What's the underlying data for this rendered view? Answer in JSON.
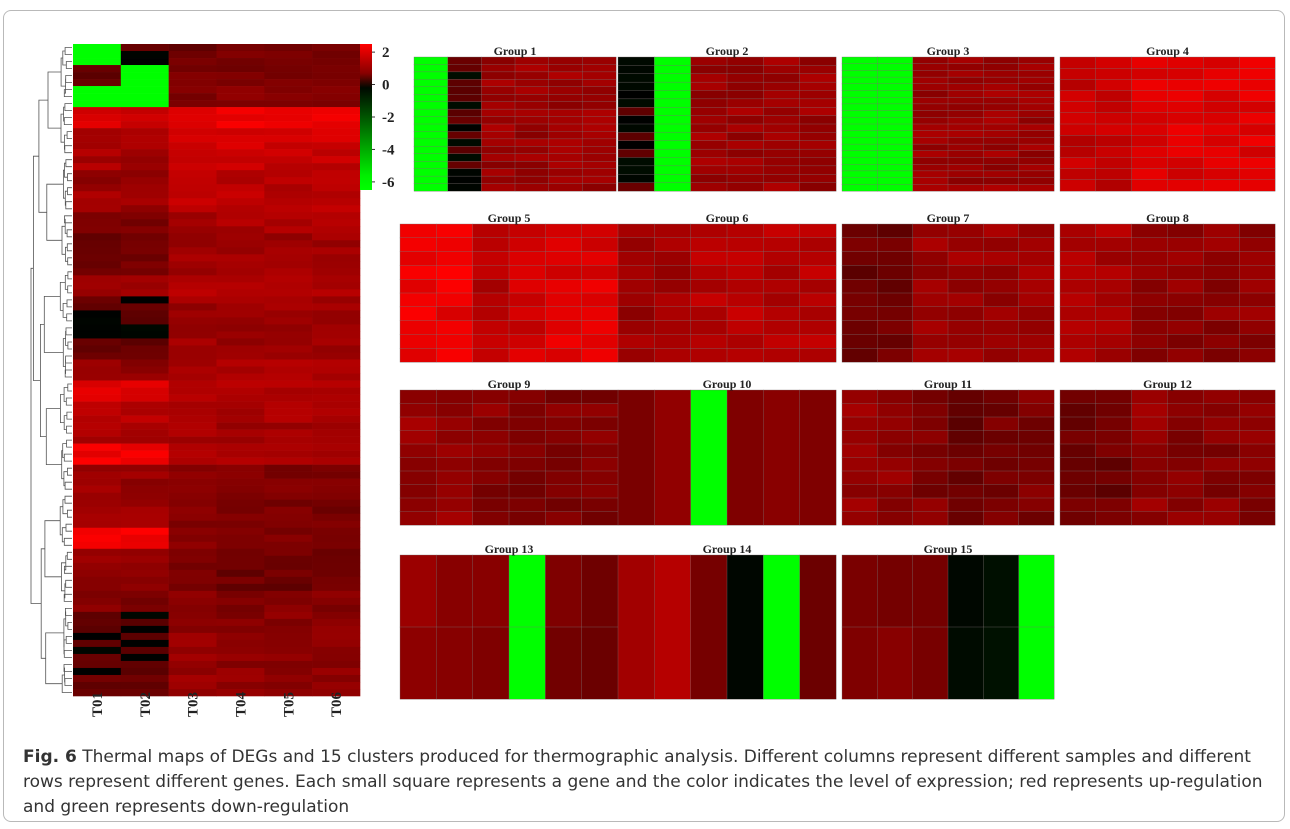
{
  "caption": {
    "label": "Fig. 6",
    "text": " Thermal maps of DEGs and 15 clusters produced for thermographic analysis. Different columns represent different samples and different rows represent different genes. Each small square represents a gene and the color indicates the level of expression; red represents up-regulation and green represents down-regulation"
  },
  "colors": {
    "up": "#ff0000",
    "zero": "#000000",
    "down": "#00ff00"
  },
  "chart_data": [
    {
      "type": "heatmap",
      "title": "",
      "samples": [
        "T01",
        "T02",
        "T03",
        "T04",
        "T05",
        "T06"
      ],
      "colorbar": {
        "ticks": [
          2,
          0,
          -2,
          -4,
          -6
        ],
        "range": [
          -6.5,
          2.5
        ]
      },
      "row_profiles": [
        [
          -6,
          0,
          0.3,
          0.4,
          0.4,
          0.5
        ],
        [
          0.2,
          -6,
          0.4,
          0.5,
          0.5,
          0.5
        ],
        [
          -6,
          -6,
          0.6,
          0.7,
          0.7,
          0.7
        ],
        [
          2,
          1.8,
          2.2,
          2.3,
          2.3,
          2.3
        ],
        [
          1.3,
          1.3,
          1.8,
          1.8,
          1.8,
          1.8
        ],
        [
          1.2,
          1.1,
          1.6,
          1.6,
          1.6,
          1.6
        ],
        [
          0.9,
          0.9,
          1.4,
          1.4,
          1.4,
          1.4
        ],
        [
          1.1,
          1.0,
          1.5,
          1.5,
          1.5,
          1.5
        ],
        [
          0.5,
          0.5,
          1.2,
          1.2,
          1.2,
          1.2
        ],
        [
          0.3,
          0.3,
          1.0,
          1.0,
          1.0,
          1.0
        ],
        [
          0.4,
          0.4,
          1.1,
          1.1,
          1.1,
          1.1
        ],
        [
          1.0,
          1.0,
          1.3,
          1.3,
          1.3,
          1.3
        ],
        [
          0.2,
          0.2,
          1.0,
          1.0,
          1.0,
          1.0
        ],
        [
          0.0,
          0.0,
          0.9,
          0.9,
          0.9,
          0.9
        ],
        [
          0.2,
          0.1,
          1.0,
          1.0,
          1.0,
          1.0
        ],
        [
          0.8,
          0.8,
          1.2,
          1.2,
          1.2,
          1.2
        ],
        [
          2.0,
          1.9,
          1.3,
          1.3,
          1.3,
          1.3
        ],
        [
          1.4,
          1.4,
          1.2,
          1.2,
          1.2,
          1.2
        ],
        [
          1.2,
          1.2,
          1.1,
          1.1,
          1.1,
          1.1
        ],
        [
          2.3,
          2.3,
          1.2,
          1.2,
          1.2,
          1.2
        ],
        [
          0.9,
          0.9,
          0.7,
          0.6,
          0.6,
          0.6
        ],
        [
          1.0,
          1.0,
          0.6,
          0.5,
          0.5,
          0.5
        ],
        [
          1.1,
          1.1,
          0.6,
          0.5,
          0.5,
          0.5
        ],
        [
          2.3,
          2.3,
          0.6,
          0.5,
          0.5,
          0.5
        ],
        [
          1.0,
          1.0,
          0.4,
          0.2,
          0.3,
          0.3
        ],
        [
          0.9,
          0.9,
          0.5,
          0.3,
          0.3,
          0.4
        ],
        [
          0.6,
          0.6,
          0.7,
          0.6,
          0.6,
          0.6
        ],
        [
          0.1,
          0.0,
          0.8,
          0.7,
          0.7,
          0.7
        ],
        [
          -0.1,
          -0.2,
          0.9,
          0.8,
          0.8,
          0.8
        ],
        [
          0.2,
          0.1,
          0.9,
          0.8,
          0.8,
          0.8
        ],
        [
          0.3,
          0.2,
          0.9,
          0.8,
          0.8,
          0.8
        ]
      ]
    },
    {
      "type": "heatmap",
      "panels": [
        {
          "title": "Group 1",
          "profile": [
            -6,
            0,
            1.0,
            1.0,
            1.0,
            1.0
          ],
          "rows": 18
        },
        {
          "title": "Group 2",
          "profile": [
            0,
            -6,
            1.0,
            1.0,
            1.0,
            1.0
          ],
          "rows": 16
        },
        {
          "title": "Group 3",
          "profile": [
            -6,
            -6,
            1.0,
            1.0,
            1.0,
            1.0
          ],
          "rows": 20
        },
        {
          "title": "Group 4",
          "profile": [
            1.6,
            1.6,
            2.0,
            2.0,
            2.0,
            2.0
          ],
          "rows": 12
        },
        {
          "title": "Group 5",
          "profile": [
            2.2,
            2.2,
            1.4,
            1.8,
            2.0,
            2.0
          ],
          "rows": 10
        },
        {
          "title": "Group 6",
          "profile": [
            1.0,
            1.0,
            1.4,
            1.4,
            1.4,
            1.4
          ],
          "rows": 10
        },
        {
          "title": "Group 7",
          "profile": [
            0.3,
            0.3,
            1.0,
            1.0,
            1.0,
            1.0
          ],
          "rows": 10
        },
        {
          "title": "Group 8",
          "profile": [
            1.2,
            1.2,
            0.8,
            0.8,
            0.8,
            0.8
          ],
          "rows": 10
        },
        {
          "title": "Group 9",
          "profile": [
            0.9,
            0.9,
            0.7,
            0.6,
            0.6,
            0.6
          ],
          "rows": 10
        },
        {
          "title": "Group 10",
          "profile": [
            0.6,
            0.6,
            -6,
            0.6,
            0.6,
            0.6
          ],
          "rows": 1
        },
        {
          "title": "Group 11",
          "profile": [
            0.9,
            0.9,
            0.6,
            0.3,
            0.4,
            0.5
          ],
          "rows": 10
        },
        {
          "title": "Group 12",
          "profile": [
            0.3,
            0.3,
            0.9,
            0.7,
            0.7,
            0.7
          ],
          "rows": 10
        },
        {
          "title": "Group 13",
          "profile": [
            0.7,
            0.7,
            0.7,
            -6,
            0.6,
            0.4
          ],
          "rows": 2
        },
        {
          "title": "Group 14",
          "profile": [
            1.3,
            1.3,
            0.6,
            0.1,
            -6,
            0.3
          ],
          "rows": 1
        },
        {
          "title": "Group 15",
          "profile": [
            0.5,
            0.5,
            0.5,
            -0.2,
            -0.4,
            -6
          ],
          "rows": 2
        }
      ]
    }
  ]
}
